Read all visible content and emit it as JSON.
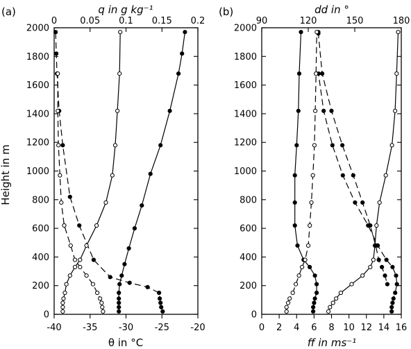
{
  "chart_data": [
    {
      "panel_label": "(a)",
      "type": "line",
      "ylabel": "Height in m",
      "ylim": [
        0,
        2000
      ],
      "yticks": [
        "0",
        "200",
        "400",
        "600",
        "800",
        "1000",
        "1200",
        "1400",
        "1600",
        "1800",
        "2000"
      ],
      "bottom_axis": {
        "label": "θ in °C",
        "lim": [
          -40,
          -20
        ],
        "ticks": [
          "-40",
          "-35",
          "-30",
          "-25",
          "-20"
        ]
      },
      "top_axis": {
        "label": "q in g kg⁻¹",
        "lim": [
          0,
          0.2
        ],
        "ticks": [
          "0",
          "0.05",
          "0.1",
          "0.15",
          "0.2"
        ]
      },
      "series": [
        {
          "axis": "bottom",
          "marker": "filled",
          "style": "solid",
          "x": [
            -31,
            -31,
            -31,
            -31,
            -31,
            -30.9,
            -30.6,
            -30.2,
            -29.6,
            -28.8,
            -27.8,
            -26.6,
            -25.2,
            -23.9,
            -22.7,
            -22.2,
            -21.8
          ],
          "y": [
            20,
            50,
            80,
            110,
            150,
            210,
            270,
            350,
            460,
            600,
            760,
            980,
            1180,
            1420,
            1680,
            1820,
            1970
          ]
        },
        {
          "axis": "bottom",
          "marker": "filled",
          "style": "dashed",
          "x": [
            -24.9,
            -25.1,
            -25.2,
            -25.3,
            -25.4,
            -27,
            -29.5,
            -32.2,
            -34.5,
            -36.5,
            -37.8,
            -38.8,
            -39.3,
            -39.6,
            -39.7,
            -39.8
          ],
          "y": [
            20,
            50,
            80,
            110,
            150,
            190,
            220,
            260,
            380,
            620,
            820,
            1180,
            1420,
            1680,
            1820,
            1970
          ]
        },
        {
          "axis": "top",
          "marker": "open",
          "style": "solid",
          "x": [
            0.012,
            0.012,
            0.012,
            0.013,
            0.015,
            0.017,
            0.022,
            0.029,
            0.036,
            0.045,
            0.059,
            0.072,
            0.081,
            0.085,
            0.088,
            0.091,
            0.092
          ],
          "y": [
            20,
            50,
            80,
            110,
            150,
            210,
            270,
            330,
            380,
            480,
            620,
            780,
            970,
            1180,
            1420,
            1680,
            1970
          ]
        },
        {
          "axis": "top",
          "marker": "open",
          "style": "dashed",
          "x": [
            0.068,
            0.067,
            0.066,
            0.064,
            0.06,
            0.054,
            0.045,
            0.036,
            0.029,
            0.023,
            0.014,
            0.01,
            0.008,
            0.006,
            0.005,
            0.005
          ],
          "y": [
            20,
            50,
            80,
            110,
            150,
            210,
            270,
            330,
            380,
            480,
            620,
            780,
            970,
            1180,
            1420,
            1680
          ]
        }
      ]
    },
    {
      "panel_label": "(b)",
      "type": "line",
      "ylim": [
        0,
        2000
      ],
      "yticks": [
        "0",
        "200",
        "400",
        "600",
        "800",
        "1000",
        "1200",
        "1400",
        "1600",
        "1800",
        "2000"
      ],
      "bottom_axis": {
        "label": "ff in ms⁻¹",
        "lim": [
          0,
          16
        ],
        "ticks": [
          "0",
          "2",
          "4",
          "6",
          "8",
          "10",
          "12",
          "14",
          "16"
        ]
      },
      "top_axis": {
        "label": "dd in °",
        "lim": [
          90,
          180
        ],
        "ticks": [
          "90",
          "120",
          "150",
          "180"
        ]
      },
      "series": [
        {
          "axis": "bottom",
          "marker": "filled",
          "style": "solid",
          "x": [
            5.9,
            5.9,
            6.0,
            6.1,
            6.3,
            6.3,
            6.1,
            5.5,
            4.8,
            4.1,
            3.8,
            3.8,
            3.8,
            4.0,
            4.2,
            4.3,
            4.5
          ],
          "y": [
            20,
            50,
            80,
            110,
            150,
            210,
            270,
            330,
            380,
            480,
            620,
            780,
            970,
            1180,
            1420,
            1680,
            1970
          ]
        },
        {
          "axis": "bottom",
          "marker": "filled",
          "style": "dashed",
          "x": [
            14.9,
            14.9,
            15.0,
            15.1,
            15.3,
            15.5,
            15.4,
            15.0,
            14.3,
            13.3,
            12.2,
            10.7,
            9.3,
            8.1,
            7.1,
            6.5
          ],
          "y": [
            20,
            50,
            80,
            110,
            150,
            210,
            270,
            330,
            380,
            480,
            620,
            780,
            970,
            1180,
            1420,
            1680
          ]
        },
        {
          "axis": "top",
          "marker": "open",
          "style": "solid",
          "x": [
            133,
            134,
            136,
            138,
            141,
            148,
            155,
            160,
            162,
            163,
            164,
            166,
            170,
            174,
            176,
            177,
            178
          ],
          "y": [
            20,
            50,
            80,
            110,
            150,
            210,
            270,
            330,
            380,
            480,
            620,
            780,
            970,
            1180,
            1420,
            1680,
            1970
          ]
        },
        {
          "axis": "top",
          "marker": "filled",
          "style": "dashed",
          "x": [
            126.5,
            126.5,
            129,
            135,
            142,
            149,
            155,
            160,
            163.5,
            165.5,
            167.5,
            169.5,
            171
          ],
          "y": [
            1970,
            1960,
            1680,
            1420,
            1180,
            970,
            780,
            620,
            480,
            380,
            330,
            270,
            210
          ]
        },
        {
          "axis": "top",
          "marker": "open",
          "style": "dashed",
          "x": [
            106,
            106,
            107,
            108,
            110,
            112,
            114,
            116,
            118,
            120,
            121,
            122,
            123,
            124,
            124.5,
            125,
            125.5
          ],
          "y": [
            20,
            50,
            80,
            110,
            150,
            210,
            270,
            330,
            380,
            480,
            620,
            780,
            970,
            1180,
            1420,
            1680,
            1970
          ]
        }
      ]
    }
  ]
}
